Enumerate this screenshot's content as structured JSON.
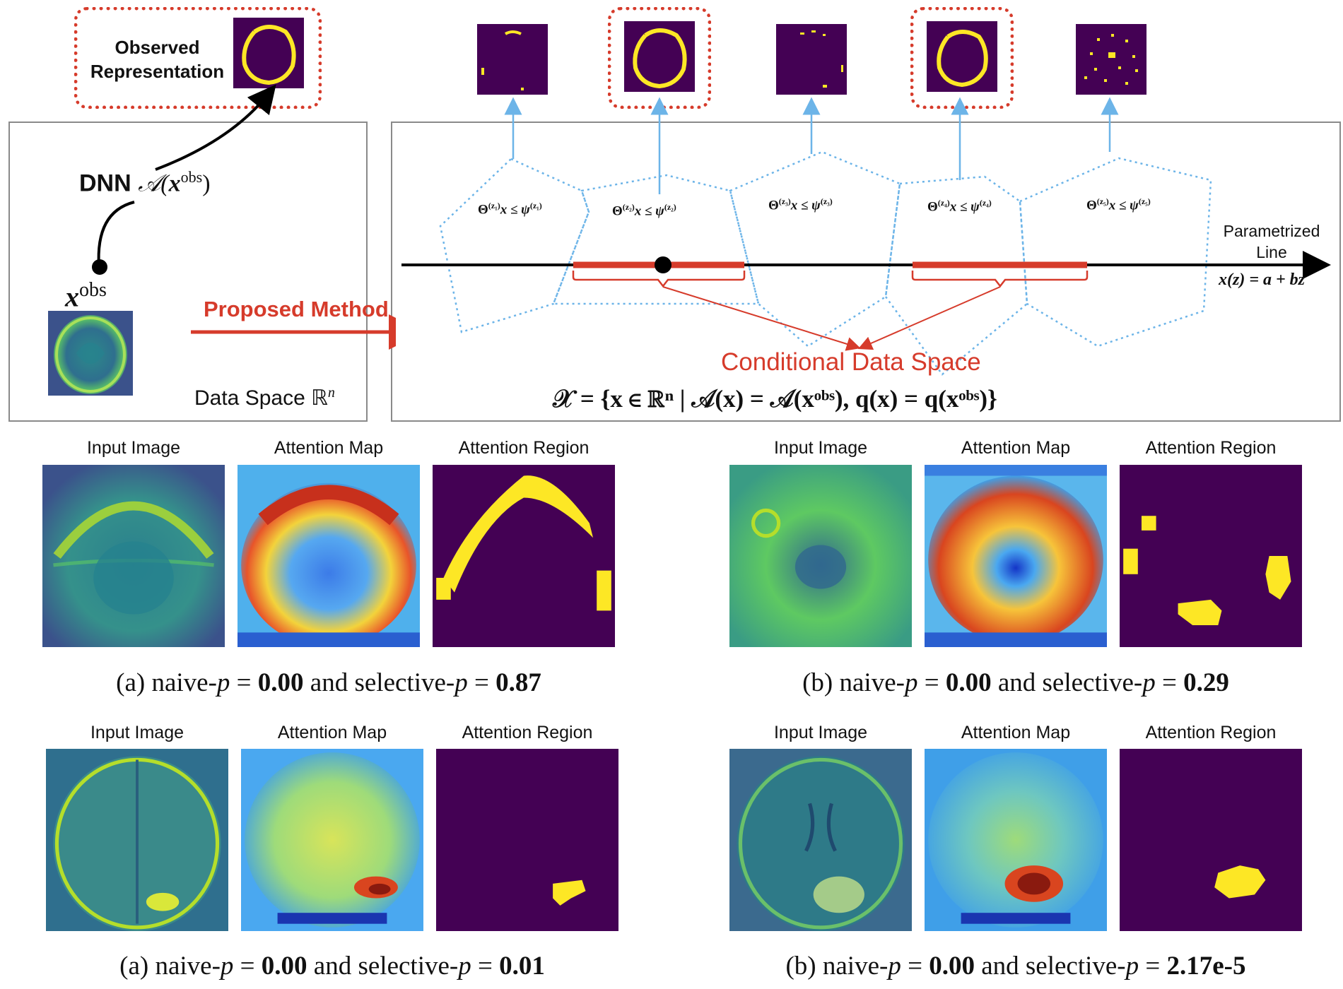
{
  "top": {
    "observed_label": "Observed Representation",
    "dnn_label": "DNN",
    "dnn_func": "𝒜(",
    "x_obs": "x",
    "obs_sup": "obs",
    "paren_close": ")",
    "proposed_method": "Proposed Method",
    "data_space": "Data Space ℝ",
    "data_space_sup": "n",
    "param_line_1": "Parametrized",
    "param_line_2": "Line",
    "param_eq": "x(z) = a + bz",
    "conditional_space": "Conditional Data Space",
    "set_formula": "𝒳 = {x ∈ ℝⁿ | 𝒜(x) = 𝒜(xᵒᵇˢ), q(x) = q(xᵒᵇˢ)}",
    "regions": [
      {
        "lhs": "Θ",
        "sup": "(z₁)",
        "mid": "x ≤ ψ",
        "rsup": "(z₁)"
      },
      {
        "lhs": "Θ",
        "sup": "(z₂)",
        "mid": "x ≤ ψ",
        "rsup": "(z₂)"
      },
      {
        "lhs": "Θ",
        "sup": "(z₃)",
        "mid": "x ≤ ψ",
        "rsup": "(z₃)"
      },
      {
        "lhs": "Θ",
        "sup": "(z₄)",
        "mid": "x ≤ ψ",
        "rsup": "(z₄)"
      },
      {
        "lhs": "Θ",
        "sup": "(z₅)",
        "mid": "x ≤ ψ",
        "rsup": "(z₅)"
      }
    ]
  },
  "examples": [
    {
      "titles": [
        "Input Image",
        "Attention Map",
        "Attention Region"
      ],
      "caption": {
        "prefix": "(a) naive-",
        "p": "p",
        "eq1": " = ",
        "v1": "0.00",
        "mid": " and selective-",
        "eq2": " = ",
        "v2": "0.87"
      }
    },
    {
      "titles": [
        "Input Image",
        "Attention Map",
        "Attention Region"
      ],
      "caption": {
        "prefix": "(b) naive-",
        "p": "p",
        "eq1": " = ",
        "v1": "0.00",
        "mid": " and selective-",
        "eq2": " = ",
        "v2": "0.29"
      }
    },
    {
      "titles": [
        "Input Image",
        "Attention Map",
        "Attention Region"
      ],
      "caption": {
        "prefix": "(a) naive-",
        "p": "p",
        "eq1": " = ",
        "v1": "0.00",
        "mid": " and selective-",
        "eq2": " = ",
        "v2": "0.01"
      }
    },
    {
      "titles": [
        "Input Image",
        "Attention Map",
        "Attention Region"
      ],
      "caption": {
        "prefix": "(b) naive-",
        "p": "p",
        "eq1": " = ",
        "v1": "0.00",
        "mid": " and selective-",
        "eq2": " = ",
        "v2": "2.17e-5"
      }
    }
  ],
  "colors": {
    "accent_red": "#d63b2b",
    "blue_line": "#6cb4e8",
    "viridis_dark": "#440154",
    "viridis_yellow": "#fde725"
  }
}
